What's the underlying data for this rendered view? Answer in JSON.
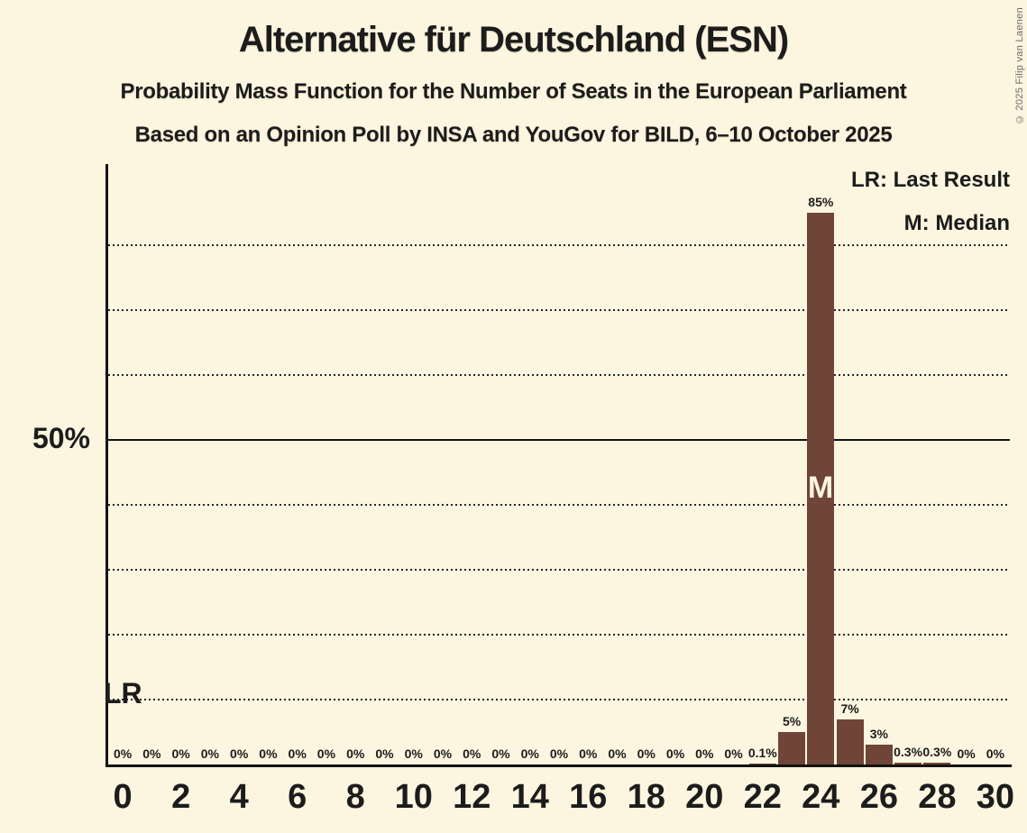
{
  "title": "Alternative für Deutschland (ESN)",
  "subtitle1": "Probability Mass Function for the Number of Seats in the European Parliament",
  "subtitle2": "Based on an Opinion Poll by INSA and YouGov for BILD, 6–10 October 2025",
  "copyright": "© 2025 Filip van Laenen",
  "legend": {
    "lr": "LR: Last Result",
    "m": "M: Median"
  },
  "colors": {
    "background": "#fcf5df",
    "bar": "#6f4538",
    "text": "#1c1c1c",
    "axis": "#131313",
    "median_letter": "#fcf5df"
  },
  "chart_data": {
    "type": "bar",
    "title": "Alternative für Deutschland (ESN)",
    "xlabel": "",
    "ylabel": "",
    "x": [
      0,
      1,
      2,
      3,
      4,
      5,
      6,
      7,
      8,
      9,
      10,
      11,
      12,
      13,
      14,
      15,
      16,
      17,
      18,
      19,
      20,
      21,
      22,
      23,
      24,
      25,
      26,
      27,
      28,
      29,
      30
    ],
    "values_pct": [
      0,
      0,
      0,
      0,
      0,
      0,
      0,
      0,
      0,
      0,
      0,
      0,
      0,
      0,
      0,
      0,
      0,
      0,
      0,
      0,
      0,
      0,
      0.1,
      5,
      85,
      7,
      3,
      0.3,
      0.3,
      0,
      0
    ],
    "bar_labels": [
      "0%",
      "0%",
      "0%",
      "0%",
      "0%",
      "0%",
      "0%",
      "0%",
      "0%",
      "0%",
      "0%",
      "0%",
      "0%",
      "0%",
      "0%",
      "0%",
      "0%",
      "0%",
      "0%",
      "0%",
      "0%",
      "0%",
      "0.1%",
      "5%",
      "85%",
      "7%",
      "3%",
      "0.3%",
      "0.3%",
      "0%",
      "0%"
    ],
    "x_tick_labels": [
      "0",
      "2",
      "4",
      "6",
      "8",
      "10",
      "12",
      "14",
      "16",
      "18",
      "20",
      "22",
      "24",
      "26",
      "28",
      "30"
    ],
    "y_axis": {
      "label": "50%",
      "label_pct": 50,
      "solid_line_pct": 50,
      "gridlines_pct": [
        10,
        20,
        30,
        40,
        50,
        60,
        70,
        80
      ],
      "ylim": [
        0,
        92.5
      ],
      "grid": "dotted"
    },
    "legend_position": "top-right",
    "annotations": {
      "last_result": {
        "label": "LR",
        "seat": 0
      },
      "median": {
        "label": "M",
        "seat": 24
      }
    }
  }
}
